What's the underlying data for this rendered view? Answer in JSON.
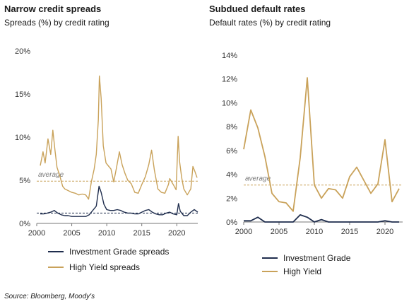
{
  "left": {
    "title": "Narrow credit spreads",
    "subtitle": "Spreads (%) by credit rating",
    "avg_label": "average",
    "legend": [
      "Investment Grade spreads",
      "High Yield spreads"
    ]
  },
  "right": {
    "title": "Subdued default rates",
    "subtitle": "Default rates (%) by credit rating",
    "avg_label": "average",
    "legend": [
      "Investment Grade",
      "High Yield"
    ]
  },
  "source": "Source: Bloomberg, Moody's",
  "colors": {
    "ig": "#1f2d4d",
    "hy": "#c9a25a",
    "avg_hy": "#c9a25a",
    "avg_ig": "#1f2d4d"
  },
  "chart_data": [
    {
      "type": "line",
      "title": "Narrow credit spreads",
      "subtitle": "Spreads (%) by credit rating",
      "xlim": [
        2000,
        2023
      ],
      "ylim": [
        0,
        20
      ],
      "xticks": [
        2000,
        2005,
        2010,
        2015,
        2020
      ],
      "yticks": [
        0,
        5,
        10,
        15,
        20
      ],
      "ytick_labels": [
        "0%",
        "5%",
        "10%",
        "15%",
        "20%"
      ],
      "averages": {
        "High Yield spreads": 4.9,
        "Investment Grade spreads": 1.2
      },
      "series": [
        {
          "name": "Investment Grade spreads",
          "x": [
            2000.5,
            2001,
            2001.5,
            2002,
            2002.5,
            2003,
            2003.5,
            2004,
            2004.5,
            2005,
            2005.5,
            2006,
            2006.5,
            2007,
            2007.5,
            2008,
            2008.5,
            2008.9,
            2009.2,
            2009.6,
            2010,
            2010.5,
            2011,
            2011.5,
            2012,
            2012.5,
            2013,
            2013.5,
            2014,
            2014.5,
            2015,
            2015.5,
            2016,
            2016.5,
            2017,
            2017.5,
            2018,
            2018.5,
            2019,
            2019.5,
            2020,
            2020.25,
            2020.5,
            2021,
            2021.5,
            2022,
            2022.5,
            2023
          ],
          "y": [
            1.1,
            1.1,
            1.2,
            1.3,
            1.5,
            1.2,
            1.0,
            0.9,
            0.9,
            0.8,
            0.8,
            0.8,
            0.8,
            0.8,
            1.0,
            1.5,
            2.0,
            4.3,
            3.6,
            2.2,
            1.6,
            1.5,
            1.5,
            1.6,
            1.5,
            1.3,
            1.2,
            1.2,
            1.1,
            1.1,
            1.3,
            1.5,
            1.6,
            1.3,
            1.1,
            1.0,
            1.0,
            1.2,
            1.3,
            1.1,
            1.0,
            2.3,
            1.4,
            0.9,
            0.9,
            1.3,
            1.6,
            1.3
          ]
        },
        {
          "name": "High Yield spreads",
          "x": [
            2000.5,
            2000.9,
            2001.2,
            2001.6,
            2002,
            2002.3,
            2002.6,
            2002.9,
            2003.3,
            2003.7,
            2004,
            2004.5,
            2005,
            2005.5,
            2006,
            2006.5,
            2007,
            2007.4,
            2007.8,
            2008.2,
            2008.5,
            2008.8,
            2008.95,
            2009.2,
            2009.5,
            2009.9,
            2010.3,
            2010.6,
            2011,
            2011.4,
            2011.8,
            2012.2,
            2012.6,
            2013,
            2013.5,
            2014,
            2014.5,
            2015,
            2015.5,
            2016,
            2016.4,
            2016.8,
            2017.3,
            2017.8,
            2018.3,
            2018.8,
            2019,
            2019.5,
            2019.9,
            2020.2,
            2020.4,
            2020.7,
            2021,
            2021.5,
            2022,
            2022.3,
            2022.6,
            2022.9
          ],
          "y": [
            6.7,
            8.3,
            7.0,
            9.8,
            8.0,
            10.8,
            8.5,
            6.5,
            5.5,
            4.3,
            4.0,
            3.8,
            3.6,
            3.5,
            3.3,
            3.4,
            3.3,
            2.8,
            4.8,
            6.3,
            8.0,
            12.0,
            17.1,
            14.5,
            9.0,
            7.0,
            6.6,
            6.3,
            4.8,
            6.5,
            8.3,
            6.8,
            5.8,
            5.0,
            4.6,
            3.6,
            3.5,
            4.5,
            5.4,
            6.8,
            8.5,
            6.2,
            4.0,
            3.6,
            3.5,
            4.5,
            5.2,
            4.5,
            3.9,
            10.1,
            7.2,
            5.3,
            4.0,
            3.3,
            4.0,
            6.6,
            6.0,
            5.3
          ]
        }
      ]
    },
    {
      "type": "line",
      "title": "Subdued default rates",
      "subtitle": "Default rates (%) by credit rating",
      "xlim": [
        2000,
        2022.5
      ],
      "ylim": [
        0,
        14
      ],
      "xticks": [
        2000,
        2005,
        2010,
        2015,
        2020
      ],
      "yticks": [
        0,
        2,
        4,
        6,
        8,
        10,
        12,
        14
      ],
      "ytick_labels": [
        "0%",
        "2%",
        "4%",
        "6%",
        "8%",
        "10%",
        "12%",
        "14%"
      ],
      "averages": {
        "High Yield": 3.1
      },
      "series": [
        {
          "name": "Investment Grade",
          "x": [
            2000,
            2001,
            2002,
            2003,
            2004,
            2005,
            2006,
            2007,
            2008,
            2009,
            2010,
            2011,
            2012,
            2013,
            2014,
            2015,
            2016,
            2017,
            2018,
            2019,
            2020,
            2021,
            2022
          ],
          "y": [
            0.1,
            0.1,
            0.4,
            0.0,
            0.0,
            0.0,
            0.0,
            0.0,
            0.6,
            0.4,
            0.0,
            0.2,
            0.0,
            0.0,
            0.0,
            0.0,
            0.0,
            0.0,
            0.0,
            0.0,
            0.1,
            0.0,
            0.0
          ]
        },
        {
          "name": "High Yield",
          "x": [
            2000,
            2001,
            2002,
            2003,
            2004,
            2005,
            2006,
            2007,
            2008,
            2009,
            2010,
            2011,
            2012,
            2013,
            2014,
            2015,
            2016,
            2017,
            2018,
            2019,
            2020,
            2021,
            2022
          ],
          "y": [
            6.1,
            9.4,
            7.9,
            5.5,
            2.4,
            1.7,
            1.6,
            0.9,
            5.4,
            12.1,
            3.1,
            2.0,
            2.8,
            2.7,
            2.0,
            3.8,
            4.6,
            3.5,
            2.4,
            3.2,
            6.9,
            1.7,
            2.8
          ]
        }
      ]
    }
  ]
}
